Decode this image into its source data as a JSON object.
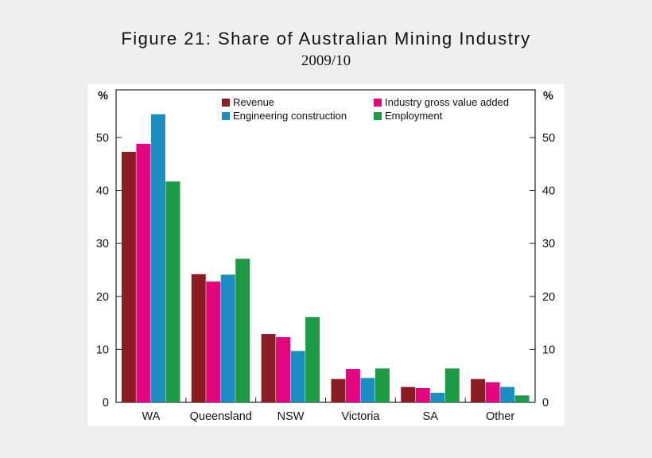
{
  "title": "Figure 21: Share of Australian Mining Industry",
  "subtitle": "2009/10",
  "chart_data": {
    "type": "bar",
    "title": "Figure 21: Share of Australian Mining Industry",
    "subtitle": "2009/10",
    "xlabel": "",
    "ylabel": "%",
    "ylabel_right": "%",
    "ylim": [
      0,
      59
    ],
    "yticks": [
      0,
      10,
      20,
      30,
      40,
      50
    ],
    "grid": false,
    "legend_position": "top-right",
    "categories": [
      "WA",
      "Queensland",
      "NSW",
      "Victoria",
      "SA",
      "Other"
    ],
    "series": [
      {
        "name": "Revenue",
        "color": "#8b1c23",
        "values": [
          47.3,
          24.2,
          12.9,
          4.4,
          2.9,
          4.4
        ]
      },
      {
        "name": "Industry gross value added",
        "color": "#e2067e",
        "values": [
          48.8,
          22.8,
          12.3,
          6.3,
          2.7,
          3.8
        ]
      },
      {
        "name": "Engineering construction",
        "color": "#1b8dc3",
        "values": [
          54.4,
          24.1,
          9.7,
          4.6,
          1.8,
          2.9
        ]
      },
      {
        "name": "Employment",
        "color": "#1d9a44",
        "values": [
          41.7,
          27.1,
          16.1,
          6.4,
          6.4,
          1.3
        ]
      }
    ]
  }
}
